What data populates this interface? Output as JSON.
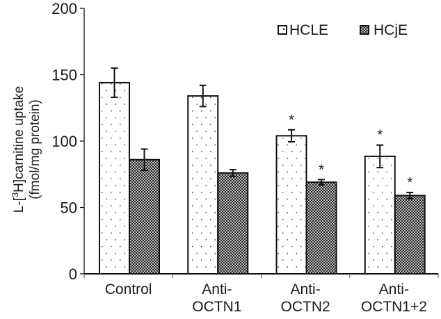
{
  "chart_data": {
    "type": "bar",
    "title": "",
    "xlabel": "",
    "ylabel_line1_prefix": "L-[",
    "ylabel_line1_sup": "3",
    "ylabel_line1_suffix": "H]carnitine uptake",
    "ylabel_line2": "(fmol/mg protein)",
    "ylim": [
      0,
      200
    ],
    "yticks": [
      0,
      50,
      100,
      150,
      200
    ],
    "grid": false,
    "legend_position": "top-right",
    "categories": [
      [
        "Control"
      ],
      [
        "Anti-",
        "OCTN1"
      ],
      [
        "Anti-",
        "OCTN2"
      ],
      [
        "Anti-",
        "OCTN1+2"
      ]
    ],
    "series": [
      {
        "name": "HCLE",
        "pattern": "dots",
        "values": [
          144,
          134,
          104,
          88.5
        ],
        "errors": [
          11,
          8,
          4.5,
          8.5
        ],
        "significant": [
          false,
          false,
          true,
          true
        ]
      },
      {
        "name": "HCjE",
        "pattern": "crosshatch",
        "values": [
          86,
          76,
          69,
          59
        ],
        "errors": [
          8,
          2.5,
          2,
          2.3
        ],
        "significant": [
          false,
          false,
          true,
          true
        ]
      }
    ],
    "significance_marker": "*",
    "colors": {
      "ink": "#111111",
      "background": "#ffffff"
    }
  }
}
